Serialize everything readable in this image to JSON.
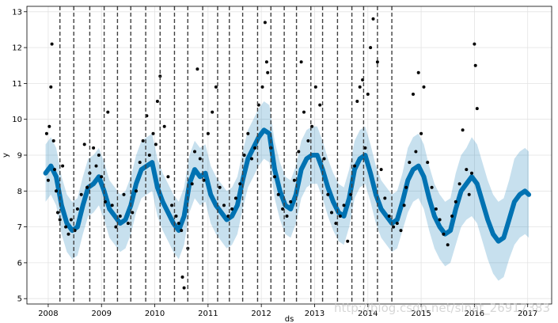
{
  "chart_data": {
    "type": "line",
    "xlabel": "ds",
    "ylabel": "y",
    "xlim": [
      2007.6,
      2017.45
    ],
    "ylim": [
      4.85,
      13.15
    ],
    "x_ticks": [
      2008,
      2009,
      2010,
      2011,
      2012,
      2013,
      2014,
      2015,
      2016,
      2017
    ],
    "x_tick_labels": [
      "2008",
      "2009",
      "2010",
      "2011",
      "2012",
      "2013",
      "2014",
      "2015",
      "2016",
      "2017"
    ],
    "y_ticks": [
      5,
      6,
      7,
      8,
      9,
      10,
      11,
      12,
      13
    ],
    "y_tick_labels": [
      "5",
      "6",
      "7",
      "8",
      "9",
      "10",
      "11",
      "12",
      "13"
    ],
    "grid": true,
    "colors": {
      "forecast": "#0072B2",
      "interval": "#0072B2",
      "observed": "#000000",
      "changepoint": "#404040",
      "grid": "#e3e3e3"
    },
    "changepoints": [
      2008.22,
      2008.48,
      2008.78,
      2009.05,
      2009.3,
      2009.55,
      2009.83,
      2010.1,
      2010.37,
      2010.62,
      2010.9,
      2011.18,
      2011.4,
      2011.65,
      2011.93,
      2012.18,
      2012.43,
      2012.66,
      2012.93,
      2013.15,
      2013.43,
      2013.7,
      2013.92,
      2014.18,
      2014.45
    ],
    "series": [
      {
        "role": "forecast",
        "x": [
          2007.95,
          2008.05,
          2008.15,
          2008.25,
          2008.35,
          2008.45,
          2008.55,
          2008.65,
          2008.75,
          2008.85,
          2008.95,
          2009.05,
          2009.15,
          2009.25,
          2009.35,
          2009.45,
          2009.55,
          2009.65,
          2009.75,
          2009.85,
          2009.95,
          2010.05,
          2010.15,
          2010.25,
          2010.35,
          2010.45,
          2010.55,
          2010.65,
          2010.75,
          2010.85,
          2010.95,
          2011.05,
          2011.15,
          2011.25,
          2011.35,
          2011.45,
          2011.55,
          2011.65,
          2011.75,
          2011.85,
          2011.95,
          2012.05,
          2012.15,
          2012.25,
          2012.35,
          2012.45,
          2012.55,
          2012.65,
          2012.75,
          2012.85,
          2012.95,
          2013.05,
          2013.15,
          2013.25,
          2013.35,
          2013.45,
          2013.55,
          2013.65,
          2013.75,
          2013.85,
          2013.95,
          2014.05,
          2014.15,
          2014.25,
          2014.35,
          2014.45,
          2014.55,
          2014.65,
          2014.75,
          2014.85,
          2014.95,
          2015.05,
          2015.15,
          2015.25,
          2015.35,
          2015.45,
          2015.55,
          2015.65,
          2015.75,
          2015.85,
          2015.95,
          2016.05,
          2016.15,
          2016.25,
          2016.35,
          2016.45,
          2016.55,
          2016.65,
          2016.75,
          2016.85,
          2016.95,
          2017.02
        ],
        "y": [
          8.5,
          8.7,
          8.4,
          7.6,
          7.1,
          6.9,
          7.0,
          7.6,
          8.1,
          8.2,
          8.4,
          8.0,
          7.5,
          7.3,
          7.1,
          7.2,
          7.6,
          8.2,
          8.6,
          8.7,
          8.8,
          8.1,
          7.7,
          7.4,
          7.1,
          6.9,
          7.3,
          8.2,
          8.6,
          8.4,
          8.5,
          7.9,
          7.6,
          7.4,
          7.2,
          7.3,
          7.6,
          8.3,
          8.9,
          9.2,
          9.5,
          9.7,
          9.6,
          8.6,
          8.0,
          7.6,
          7.5,
          7.9,
          8.6,
          8.9,
          9.0,
          9.0,
          8.6,
          8.1,
          7.7,
          7.4,
          7.3,
          7.8,
          8.6,
          8.9,
          9.0,
          8.5,
          7.9,
          7.5,
          7.3,
          7.1,
          7.2,
          7.7,
          8.3,
          8.6,
          8.7,
          8.4,
          7.8,
          7.3,
          7.0,
          6.8,
          6.9,
          7.5,
          8.0,
          8.2,
          8.4,
          8.2,
          7.7,
          7.2,
          6.8,
          6.6,
          6.7,
          7.2,
          7.7,
          7.9,
          8.0,
          7.9
        ],
        "lower": [
          7.7,
          7.9,
          7.6,
          6.8,
          6.3,
          6.1,
          6.2,
          6.8,
          7.3,
          7.4,
          7.6,
          7.2,
          6.7,
          6.5,
          6.3,
          6.4,
          6.8,
          7.4,
          7.8,
          7.9,
          8.0,
          7.3,
          6.9,
          6.6,
          6.3,
          6.1,
          6.5,
          7.4,
          7.8,
          7.6,
          7.7,
          7.1,
          6.8,
          6.6,
          6.4,
          6.5,
          6.8,
          7.5,
          8.1,
          8.4,
          8.7,
          8.9,
          8.8,
          7.8,
          7.2,
          6.8,
          6.7,
          7.1,
          7.8,
          8.1,
          8.2,
          8.2,
          7.8,
          7.3,
          6.9,
          6.6,
          6.5,
          7.0,
          7.8,
          8.1,
          8.2,
          7.7,
          7.1,
          6.7,
          6.5,
          6.3,
          6.4,
          6.9,
          7.4,
          7.7,
          7.8,
          7.5,
          6.9,
          6.4,
          6.1,
          5.9,
          6.0,
          6.5,
          7.0,
          7.2,
          7.3,
          7.1,
          6.6,
          6.1,
          5.7,
          5.5,
          5.6,
          6.1,
          6.5,
          6.7,
          6.8,
          6.7
        ],
        "upper": [
          9.3,
          9.5,
          9.2,
          8.4,
          7.9,
          7.7,
          7.8,
          8.4,
          8.9,
          9.0,
          9.2,
          8.8,
          8.3,
          8.1,
          7.9,
          8.0,
          8.4,
          9.0,
          9.4,
          9.5,
          9.6,
          8.9,
          8.5,
          8.2,
          7.9,
          7.7,
          8.1,
          9.0,
          9.4,
          9.2,
          9.3,
          8.7,
          8.4,
          8.2,
          8.0,
          8.1,
          8.4,
          9.1,
          9.7,
          10.0,
          10.3,
          10.5,
          10.4,
          9.4,
          8.8,
          8.4,
          8.3,
          8.7,
          9.4,
          9.7,
          9.8,
          9.8,
          9.4,
          8.9,
          8.5,
          8.2,
          8.1,
          8.6,
          9.4,
          9.7,
          9.8,
          9.3,
          8.7,
          8.3,
          8.1,
          7.9,
          8.0,
          8.5,
          9.2,
          9.5,
          9.6,
          9.3,
          8.7,
          8.2,
          7.9,
          7.7,
          7.8,
          8.5,
          9.0,
          9.2,
          9.5,
          9.3,
          8.8,
          8.3,
          7.9,
          7.7,
          7.8,
          8.3,
          8.9,
          9.1,
          9.2,
          9.1
        ]
      },
      {
        "role": "observed",
        "x": [
          2007.97,
          2008.0,
          2008.02,
          2008.05,
          2008.07,
          2008.1,
          2008.12,
          2008.15,
          2008.18,
          2008.22,
          2008.27,
          2008.33,
          2008.38,
          2008.43,
          2008.5,
          2008.55,
          2008.62,
          2008.68,
          2008.73,
          2008.78,
          2008.85,
          2008.9,
          2008.95,
          2009.0,
          2009.07,
          2009.12,
          2009.2,
          2009.27,
          2009.35,
          2009.42,
          2009.5,
          2009.58,
          2009.65,
          2009.72,
          2009.78,
          2009.85,
          2009.9,
          2009.97,
          2010.02,
          2010.05,
          2010.1,
          2010.18,
          2010.25,
          2010.32,
          2010.4,
          2010.45,
          2010.5,
          2010.52,
          2010.55,
          2010.62,
          2010.7,
          2010.75,
          2010.8,
          2010.85,
          2010.92,
          2011.0,
          2011.08,
          2011.15,
          2011.22,
          2011.3,
          2011.38,
          2011.45,
          2011.52,
          2011.6,
          2011.68,
          2011.75,
          2011.82,
          2011.88,
          2011.95,
          2012.02,
          2012.07,
          2012.1,
          2012.12,
          2012.18,
          2012.25,
          2012.32,
          2012.4,
          2012.48,
          2012.55,
          2012.62,
          2012.7,
          2012.75,
          2012.8,
          2012.88,
          2012.95,
          2013.02,
          2013.1,
          2013.18,
          2013.25,
          2013.32,
          2013.4,
          2013.48,
          2013.55,
          2013.62,
          2013.68,
          2013.75,
          2013.8,
          2013.85,
          2013.9,
          2013.95,
          2014.0,
          2014.05,
          2014.1,
          2014.18,
          2014.25,
          2014.32,
          2014.4,
          2014.48,
          2014.55,
          2014.62,
          2014.68,
          2014.72,
          2014.78,
          2014.85,
          2014.9,
          2014.95,
          2015.0,
          2015.05,
          2015.12,
          2015.2,
          2015.28,
          2015.35,
          2015.42,
          2015.5,
          2015.58,
          2015.65,
          2015.72,
          2015.78,
          2015.85,
          2015.9,
          2015.95,
          2016.0,
          2016.02,
          2016.05
        ],
        "y": [
          9.6,
          8.3,
          9.8,
          10.9,
          12.1,
          9.4,
          8.6,
          8.0,
          7.4,
          7.2,
          8.7,
          7.0,
          6.8,
          7.2,
          6.9,
          7.5,
          7.9,
          9.3,
          8.1,
          8.5,
          9.2,
          8.7,
          9.0,
          8.4,
          7.7,
          10.2,
          7.6,
          7.0,
          7.3,
          7.9,
          7.1,
          7.4,
          8.0,
          8.8,
          9.4,
          10.1,
          9.0,
          9.6,
          9.3,
          10.5,
          11.2,
          9.8,
          8.4,
          7.6,
          7.3,
          7.1,
          6.9,
          5.6,
          5.3,
          6.4,
          8.2,
          9.1,
          11.4,
          8.9,
          8.3,
          9.6,
          10.2,
          10.9,
          8.1,
          7.6,
          7.3,
          7.5,
          7.8,
          8.2,
          9.0,
          9.6,
          8.9,
          9.2,
          10.4,
          10.9,
          12.7,
          11.6,
          11.3,
          9.2,
          8.4,
          7.9,
          7.5,
          7.3,
          7.7,
          8.3,
          9.1,
          11.6,
          10.2,
          9.4,
          9.8,
          10.9,
          10.4,
          8.9,
          7.9,
          7.4,
          7.1,
          7.3,
          7.6,
          6.6,
          7.9,
          8.7,
          10.5,
          10.9,
          11.1,
          9.2,
          10.7,
          12.0,
          12.8,
          11.6,
          8.6,
          7.8,
          7.3,
          7.0,
          7.1,
          6.9,
          7.6,
          8.1,
          8.8,
          10.7,
          9.1,
          11.3,
          9.6,
          10.9,
          8.8,
          8.1,
          7.5,
          7.2,
          6.8,
          6.5,
          7.3,
          7.7,
          8.2,
          9.7,
          8.6,
          7.9,
          8.5,
          12.1,
          11.5,
          10.3
        ]
      }
    ]
  },
  "watermark": {
    "text": "http://blog.csdn.net/sinat_26917383"
  }
}
